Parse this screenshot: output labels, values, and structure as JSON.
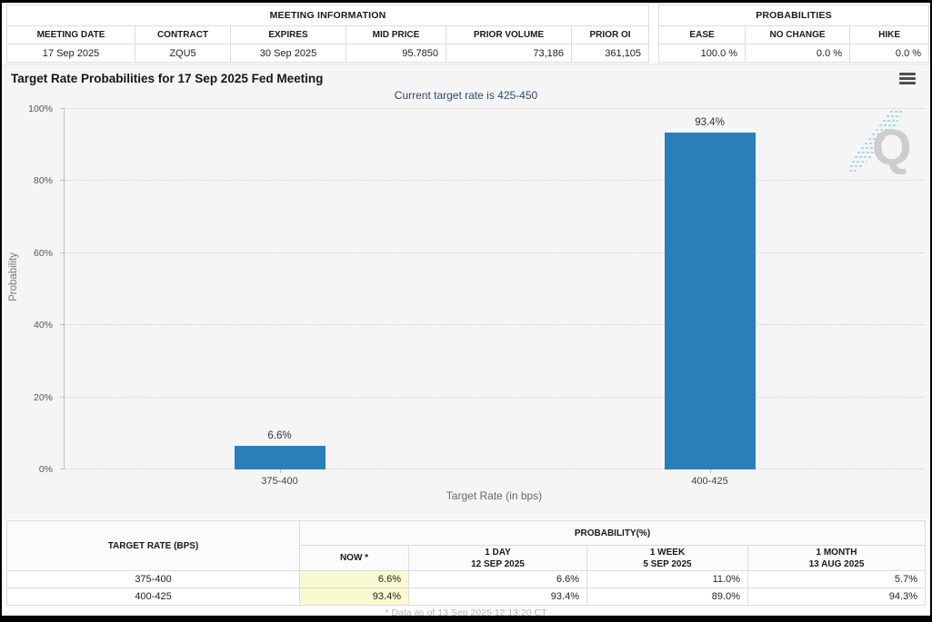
{
  "meeting_information": {
    "title": "MEETING INFORMATION",
    "headers": [
      "MEETING DATE",
      "CONTRACT",
      "EXPIRES",
      "MID PRICE",
      "PRIOR VOLUME",
      "PRIOR OI"
    ],
    "values": [
      "17 Sep 2025",
      "ZQU5",
      "30 Sep 2025",
      "95.7850",
      "73,186",
      "361,105"
    ]
  },
  "probabilities_panel": {
    "title": "PROBABILITIES",
    "headers": [
      "EASE",
      "NO CHANGE",
      "HIKE"
    ],
    "values": [
      "100.0 %",
      "0.0 %",
      "0.0 %"
    ]
  },
  "chart": {
    "title": "Target Rate Probabilities for 17 Sep 2025 Fed Meeting",
    "subtitle": "Current target rate is 425-450",
    "menu_icon": "hamburger-menu",
    "watermark_letter": "Q"
  },
  "chart_data": {
    "type": "bar",
    "categories": [
      "375-400",
      "400-425"
    ],
    "values": [
      6.6,
      93.4
    ],
    "value_labels": [
      "6.6%",
      "93.4%"
    ],
    "title": "Target Rate Probabilities for 17 Sep 2025 Fed Meeting",
    "subtitle": "Current target rate is 425-450",
    "xlabel": "Target Rate (in bps)",
    "ylabel": "Probability",
    "ylim": [
      0,
      100
    ],
    "ytick_values": [
      0,
      20,
      40,
      60,
      80,
      100
    ],
    "ytick_labels": [
      "0%",
      "20%",
      "40%",
      "60%",
      "80%",
      "100%"
    ],
    "bar_color": "#2b7fb8",
    "grid": "horizontal-dotted",
    "legend": "none"
  },
  "history_table": {
    "corner_header": "TARGET RATE (BPS)",
    "group_header": "PROBABILITY(%)",
    "col_now": "NOW *",
    "col_1day": "1 DAY",
    "col_1day_date": "12 SEP 2025",
    "col_1week": "1 WEEK",
    "col_1week_date": "5 SEP 2025",
    "col_1month": "1 MONTH",
    "col_1month_date": "13 AUG 2025",
    "rows": [
      {
        "rate": "375-400",
        "now": "6.6%",
        "day": "6.6%",
        "week": "11.0%",
        "month": "5.7%"
      },
      {
        "rate": "400-425",
        "now": "93.4%",
        "day": "93.4%",
        "week": "89.0%",
        "month": "94.3%"
      }
    ],
    "now_highlight_color": "#fafad2"
  },
  "footer": {
    "note": "* Data as of 13 Sep 2025 12:13:20 CT"
  }
}
